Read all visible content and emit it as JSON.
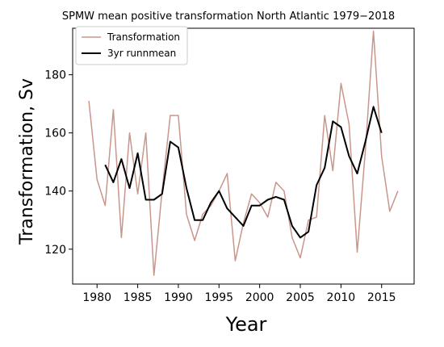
{
  "chart_data": {
    "type": "line",
    "title": "SPMW mean positive transformation North Atlantic 1979−2018",
    "xlabel": "Year",
    "ylabel": "Transformation, Sv",
    "xlim": [
      1977,
      2019
    ],
    "ylim": [
      108,
      196
    ],
    "xticks": [
      1980,
      1985,
      1990,
      1995,
      2000,
      2005,
      2010,
      2015
    ],
    "yticks": [
      120,
      140,
      160,
      180
    ],
    "grid": false,
    "legend_position": "top-left",
    "series": [
      {
        "name": "Transformation",
        "color": "#c8968a",
        "x": [
          1979,
          1980,
          1981,
          1982,
          1983,
          1984,
          1985,
          1986,
          1987,
          1988,
          1989,
          1990,
          1991,
          1992,
          1993,
          1994,
          1995,
          1996,
          1997,
          1998,
          1999,
          2000,
          2001,
          2002,
          2003,
          2004,
          2005,
          2006,
          2007,
          2008,
          2009,
          2010,
          2011,
          2012,
          2013,
          2014,
          2015,
          2016,
          2017
        ],
        "values": [
          171,
          144,
          135,
          168,
          124,
          160,
          139,
          160,
          111,
          140,
          166,
          166,
          132,
          123,
          132,
          135,
          140,
          146,
          116,
          129,
          139,
          136,
          131,
          143,
          140,
          124,
          117,
          130,
          131,
          166,
          147,
          177,
          163,
          119,
          154,
          195,
          152,
          133,
          140
        ]
      },
      {
        "name": "3yr runnmean",
        "color": "#000000",
        "x": [
          1981,
          1982,
          1983,
          1984,
          1985,
          1986,
          1987,
          1988,
          1989,
          1990,
          1991,
          1992,
          1993,
          1994,
          1995,
          1996,
          1997,
          1998,
          1999,
          2000,
          2001,
          2002,
          2003,
          2004,
          2005,
          2006,
          2007,
          2008,
          2009,
          2010,
          2011,
          2012,
          2013,
          2014,
          2015
        ],
        "values": [
          149,
          143,
          151,
          141,
          153,
          137,
          137,
          139,
          157,
          155,
          141,
          130,
          130,
          136,
          140,
          134,
          131,
          128,
          135,
          135,
          137,
          138,
          137,
          128,
          124,
          126,
          142,
          148,
          164,
          162,
          152,
          146,
          157,
          169,
          160
        ]
      }
    ]
  }
}
